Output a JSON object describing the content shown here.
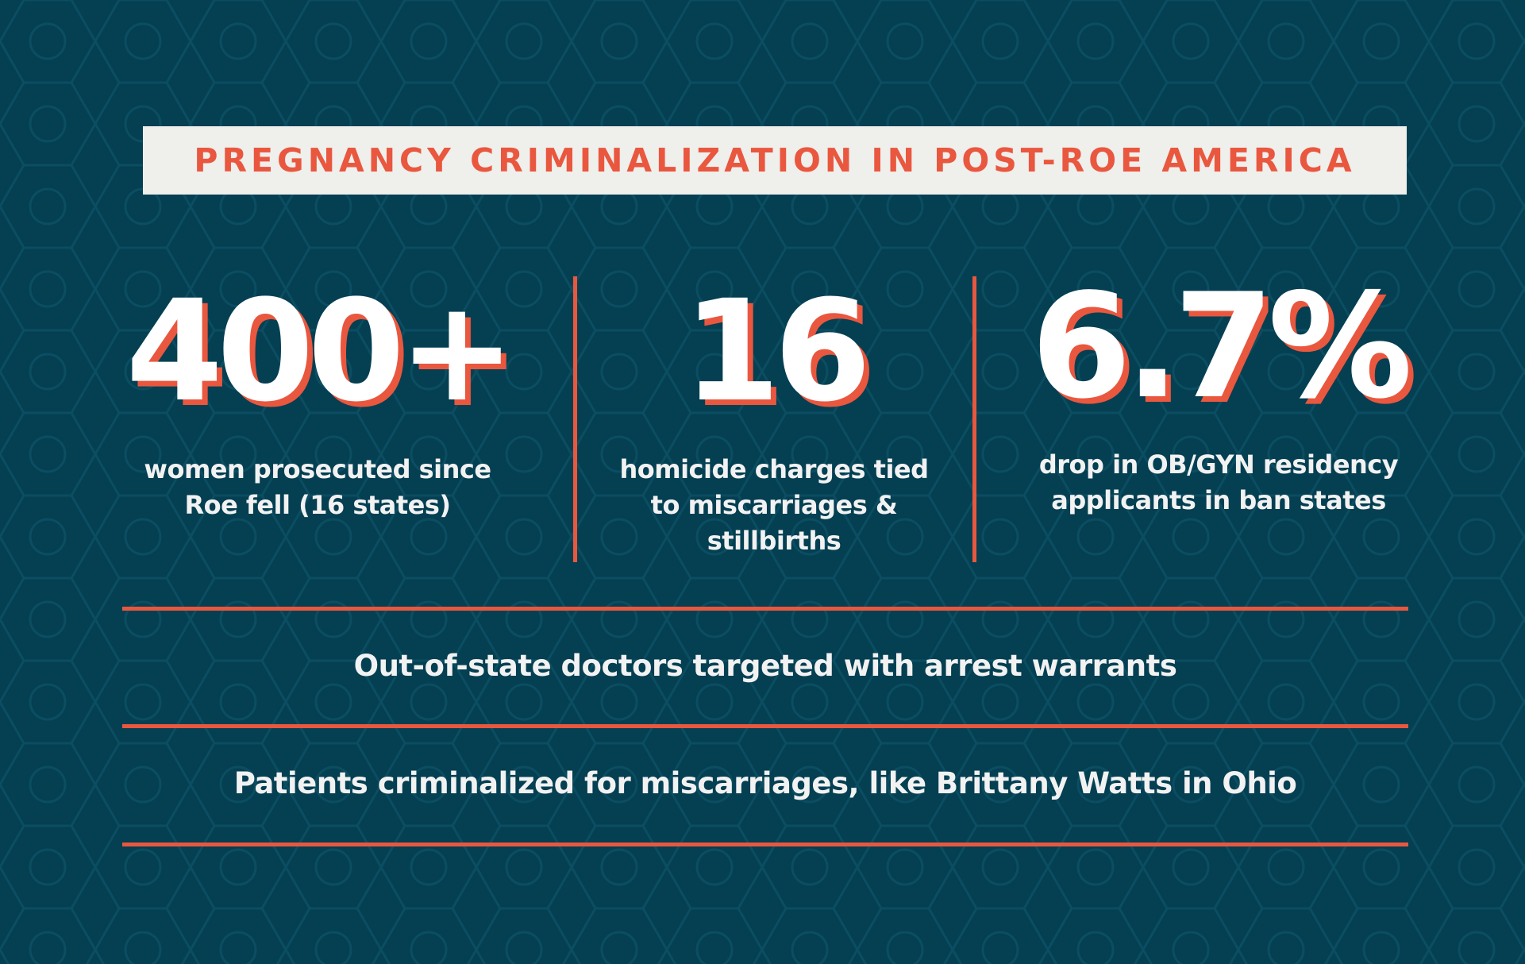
{
  "colors": {
    "background": "#043f52",
    "accent": "#e9573f",
    "title_box": "#efefec",
    "text": "#ffffff"
  },
  "title": "PREGNANCY CRIMINALIZATION IN POST-ROE AMERICA",
  "stats": [
    {
      "number": "400+",
      "caption_lines": [
        "women prosecuted since",
        "Roe fell (16 states)"
      ]
    },
    {
      "number": "16",
      "caption_lines": [
        "homicide charges tied",
        "to miscarriages &",
        "stillbirths"
      ]
    },
    {
      "number": "6.7%",
      "caption_lines": [
        "drop in OB/GYN residency",
        "applicants in ban states"
      ]
    }
  ],
  "facts": [
    "Out-of-state doctors targeted with arrest warrants",
    "Patients criminalized for miscarriages, like Brittany Watts in Ohio"
  ]
}
